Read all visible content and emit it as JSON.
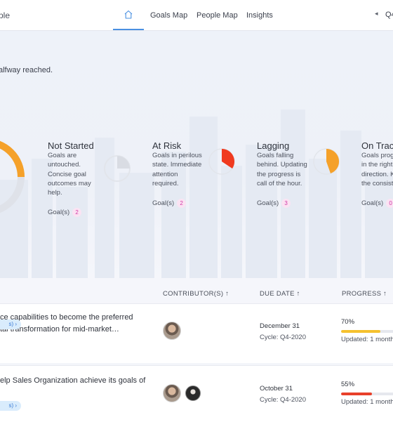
{
  "nav": {
    "brand_fragment": "ple",
    "links": [
      "Goals Map",
      "People Map",
      "Insights"
    ],
    "prev_symbol": "◂",
    "quarter": "Q4-"
  },
  "hero": {
    "progress_text": "alfway reached."
  },
  "statuses": [
    {
      "title": "Not Started",
      "desc": [
        "Goals are",
        "untouched.",
        "Concise goal",
        "outcomes may",
        "help."
      ],
      "goal_label": "Goal(s)",
      "count": "2",
      "fill_fraction": 0,
      "color": "#d9dce3"
    },
    {
      "title": "At Risk",
      "desc": [
        "Goals in perilous",
        "state. Immediate",
        "attention",
        "required."
      ],
      "goal_label": "Goal(s)",
      "count": "2",
      "fill_fraction": 0.25,
      "color": "#f03a1f"
    },
    {
      "title": "Lagging",
      "desc": [
        "Goals falling",
        "behind. Updating",
        "the progress is",
        "call of the hour."
      ],
      "goal_label": "Goal(s)",
      "count": "3",
      "fill_fraction": 0.45,
      "color": "#f5a12a"
    },
    {
      "title": "On Track",
      "desc": [
        "Goals prog",
        "in the right",
        "direction. K",
        "the consist"
      ],
      "goal_label": "Goal(s)",
      "count": "0",
      "fill_fraction": 0,
      "color": "#3bb273"
    }
  ],
  "table": {
    "headers": {
      "contributors": "CONTRIBUTOR(S) ↑",
      "due_date": "DUE DATE ↑",
      "progress": "PROGRESS ↑"
    },
    "rows": [
      {
        "goal_line1": "ce capabilities to become the preferred",
        "goal_line2": "tal transformation for mid-market…",
        "pill": "s)  ›",
        "due_date": "December 31",
        "cycle": "Cycle: Q4-2020",
        "percent": "70%",
        "progress": 0.7,
        "bar_color": "#f5c12e",
        "updated": "Updated: 1 month"
      },
      {
        "goal_line1": "elp Sales Organization achieve its goals of",
        "goal_line2": "",
        "pill": "s)  ›",
        "due_date": "October 31",
        "cycle": "Cycle: Q4-2020",
        "percent": "55%",
        "progress": 0.55,
        "bar_color": "#e8402a",
        "updated": "Updated: 1 month"
      }
    ]
  },
  "colors": {
    "accent": "#4a90e2",
    "big_donut_orange": "#f5a12a",
    "big_donut_gray": "#dfe2e9"
  },
  "icons": {
    "home": "home-icon",
    "prev": "chevron-left-icon"
  }
}
